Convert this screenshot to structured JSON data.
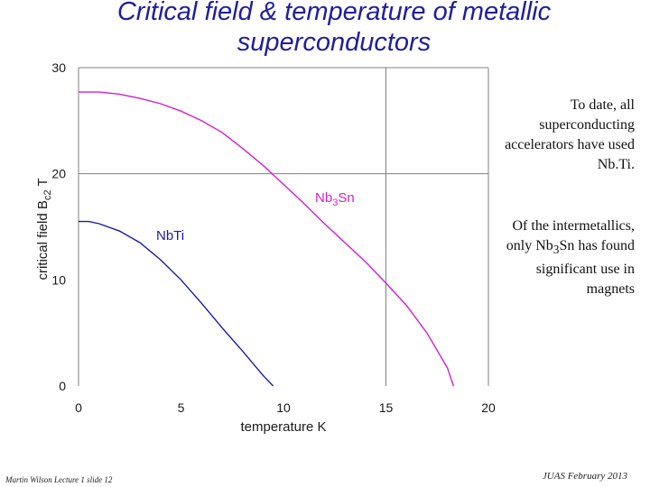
{
  "slide": {
    "title_line1": "Critical field & temperature of metallic",
    "title_line2": "superconductors",
    "note1": "To date, all superconducting accelerators have used Nb.Ti.",
    "note2_pre": "Of the intermetallics, only Nb",
    "note2_sub": "3",
    "note2_post": "Sn has found significant use in magnets",
    "footer_left": "Martin Wilson Lecture 1 slide 12",
    "footer_right": "JUAS February 2013"
  },
  "colors": {
    "title": "#1f1f9a",
    "nbti": "#1a1aa6",
    "nb3sn": "#d21fd2",
    "axis": "#808080"
  },
  "chart_data": {
    "type": "line",
    "title": "Critical field & temperature of metallic superconductors",
    "xlabel": "temperature K",
    "ylabel_pre": "critical field  B",
    "ylabel_sub": "c2",
    "ylabel_post": "  T",
    "xlim": [
      0,
      20
    ],
    "ylim": [
      0,
      30
    ],
    "xticks": [
      0,
      5,
      10,
      15,
      20
    ],
    "yticks": [
      0,
      10,
      20,
      30
    ],
    "grid": "crosshair at x=15, y=20",
    "series": [
      {
        "name": "NbTi",
        "label": "NbTi",
        "x": [
          0,
          0.5,
          1,
          2,
          3,
          4,
          5,
          6,
          7,
          8,
          9,
          9.5
        ],
        "y": [
          15.5,
          15.5,
          15.3,
          14.6,
          13.5,
          11.9,
          10.0,
          7.8,
          5.5,
          3.3,
          1.0,
          0
        ]
      },
      {
        "name": "Nb3Sn",
        "label_pre": "Nb",
        "label_sub": "3",
        "label_post": "Sn",
        "x": [
          0,
          1,
          2,
          3,
          4,
          5,
          6,
          7,
          8,
          9,
          10,
          11,
          12,
          13,
          14,
          15,
          16,
          17,
          18,
          18.3
        ],
        "y": [
          27.7,
          27.7,
          27.5,
          27.1,
          26.6,
          25.9,
          25.0,
          23.9,
          22.4,
          20.8,
          19.0,
          17.2,
          15.3,
          13.5,
          11.7,
          9.7,
          7.6,
          5.0,
          1.7,
          0
        ]
      }
    ]
  }
}
